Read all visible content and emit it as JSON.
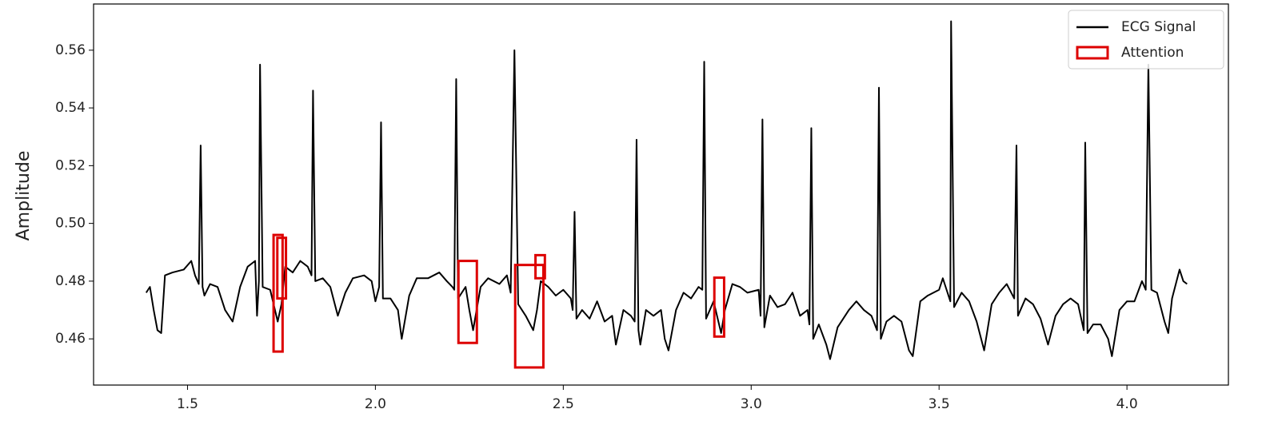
{
  "chart_data": {
    "type": "line",
    "ylabel": "Amplitude",
    "xlim": [
      1.25,
      4.27
    ],
    "ylim": [
      0.444,
      0.576
    ],
    "xticks": [
      1.5,
      {
        "value": 2.0,
        "label": "2.0"
      },
      2.5,
      {
        "value": 3.0,
        "label": "3.0"
      },
      3.5,
      {
        "value": 4.0,
        "label": "4.0"
      }
    ],
    "yticks": [
      0.46,
      0.48,
      {
        "value": 0.5,
        "label": "0.50"
      },
      0.52,
      0.54,
      0.56
    ],
    "legend": "upper right",
    "series": [
      {
        "name": "ECG Signal",
        "color": "#000000",
        "x": [
          1.39,
          1.4,
          1.41,
          1.42,
          1.43,
          1.44,
          1.46,
          1.49,
          1.51,
          1.52,
          1.53,
          1.535,
          1.54,
          1.545,
          1.56,
          1.58,
          1.6,
          1.62,
          1.64,
          1.66,
          1.68,
          1.685,
          1.69,
          1.693,
          1.7,
          1.72,
          1.74,
          1.75,
          1.76,
          1.78,
          1.8,
          1.82,
          1.83,
          1.834,
          1.84,
          1.86,
          1.88,
          1.9,
          1.92,
          1.94,
          1.97,
          1.99,
          2.0,
          2.01,
          2.015,
          2.02,
          2.04,
          2.06,
          2.07,
          2.09,
          2.11,
          2.14,
          2.17,
          2.19,
          2.205,
          2.21,
          2.215,
          2.22,
          2.24,
          2.25,
          2.26,
          2.28,
          2.3,
          2.33,
          2.35,
          2.36,
          2.37,
          2.38,
          2.4,
          2.42,
          2.43,
          2.44,
          2.46,
          2.48,
          2.5,
          2.52,
          2.525,
          2.53,
          2.535,
          2.55,
          2.57,
          2.59,
          2.61,
          2.63,
          2.64,
          2.66,
          2.68,
          2.69,
          2.695,
          2.7,
          2.705,
          2.72,
          2.74,
          2.76,
          2.77,
          2.78,
          2.8,
          2.82,
          2.84,
          2.86,
          2.87,
          2.875,
          2.88,
          2.9,
          2.92,
          2.93,
          2.95,
          2.97,
          2.99,
          3.02,
          3.025,
          3.03,
          3.035,
          3.05,
          3.07,
          3.09,
          3.11,
          3.13,
          3.15,
          3.155,
          3.16,
          3.165,
          3.18,
          3.2,
          3.21,
          3.23,
          3.26,
          3.28,
          3.3,
          3.32,
          3.335,
          3.34,
          3.345,
          3.36,
          3.38,
          3.4,
          3.42,
          3.43,
          3.45,
          3.47,
          3.5,
          3.51,
          3.52,
          3.53,
          3.532,
          3.54,
          3.56,
          3.58,
          3.6,
          3.62,
          3.64,
          3.66,
          3.68,
          3.7,
          3.706,
          3.71,
          3.73,
          3.75,
          3.77,
          3.79,
          3.81,
          3.83,
          3.85,
          3.87,
          3.885,
          3.889,
          3.895,
          3.91,
          3.93,
          3.95,
          3.96,
          3.98,
          4.0,
          4.02,
          4.04,
          4.05,
          4.057,
          4.065,
          4.08,
          4.1,
          4.11,
          4.12,
          4.14,
          4.15,
          4.16
        ],
        "values": [
          0.476,
          0.478,
          0.47,
          0.463,
          0.462,
          0.482,
          0.483,
          0.484,
          0.487,
          0.482,
          0.479,
          0.527,
          0.478,
          0.475,
          0.479,
          0.478,
          0.47,
          0.466,
          0.478,
          0.485,
          0.487,
          0.468,
          0.48,
          0.555,
          0.478,
          0.477,
          0.466,
          0.472,
          0.485,
          0.483,
          0.487,
          0.485,
          0.482,
          0.546,
          0.48,
          0.481,
          0.478,
          0.468,
          0.476,
          0.481,
          0.482,
          0.48,
          0.473,
          0.478,
          0.535,
          0.474,
          0.474,
          0.47,
          0.46,
          0.475,
          0.481,
          0.481,
          0.483,
          0.48,
          0.478,
          0.477,
          0.55,
          0.474,
          0.478,
          0.47,
          0.463,
          0.478,
          0.481,
          0.479,
          0.482,
          0.476,
          0.56,
          0.472,
          0.468,
          0.463,
          0.47,
          0.48,
          0.478,
          0.475,
          0.477,
          0.474,
          0.47,
          0.504,
          0.467,
          0.47,
          0.467,
          0.473,
          0.466,
          0.468,
          0.458,
          0.47,
          0.468,
          0.466,
          0.529,
          0.463,
          0.458,
          0.47,
          0.468,
          0.47,
          0.46,
          0.456,
          0.47,
          0.476,
          0.474,
          0.478,
          0.477,
          0.556,
          0.467,
          0.473,
          0.462,
          0.47,
          0.479,
          0.478,
          0.476,
          0.477,
          0.468,
          0.536,
          0.464,
          0.475,
          0.471,
          0.472,
          0.476,
          0.468,
          0.47,
          0.465,
          0.533,
          0.46,
          0.465,
          0.458,
          0.453,
          0.464,
          0.47,
          0.473,
          0.47,
          0.468,
          0.463,
          0.547,
          0.46,
          0.466,
          0.468,
          0.466,
          0.456,
          0.454,
          0.473,
          0.475,
          0.477,
          0.481,
          0.477,
          0.473,
          0.57,
          0.471,
          0.476,
          0.473,
          0.466,
          0.456,
          0.472,
          0.476,
          0.479,
          0.474,
          0.527,
          0.468,
          0.474,
          0.472,
          0.467,
          0.458,
          0.468,
          0.472,
          0.474,
          0.472,
          0.463,
          0.528,
          0.462,
          0.465,
          0.465,
          0.46,
          0.454,
          0.47,
          0.473,
          0.473,
          0.48,
          0.477,
          0.555,
          0.477,
          0.476,
          0.466,
          0.462,
          0.474,
          0.484,
          0.48,
          0.479
        ]
      }
    ],
    "attention": {
      "name": "Attention",
      "color": "#dd0000",
      "boxes": [
        {
          "x": [
            1.729,
            1.753
          ],
          "y": [
            0.4556,
            0.496
          ]
        },
        {
          "x": [
            1.739,
            1.762
          ],
          "y": [
            0.474,
            0.495
          ]
        },
        {
          "x": [
            2.221,
            2.27
          ],
          "y": [
            0.4586,
            0.487
          ]
        },
        {
          "x": [
            2.372,
            2.447
          ],
          "y": [
            0.4501,
            0.4856
          ]
        },
        {
          "x": [
            2.426,
            2.451
          ],
          "y": [
            0.481,
            0.489
          ]
        },
        {
          "x": [
            2.902,
            2.928
          ],
          "y": [
            0.4608,
            0.4812
          ]
        }
      ]
    }
  }
}
